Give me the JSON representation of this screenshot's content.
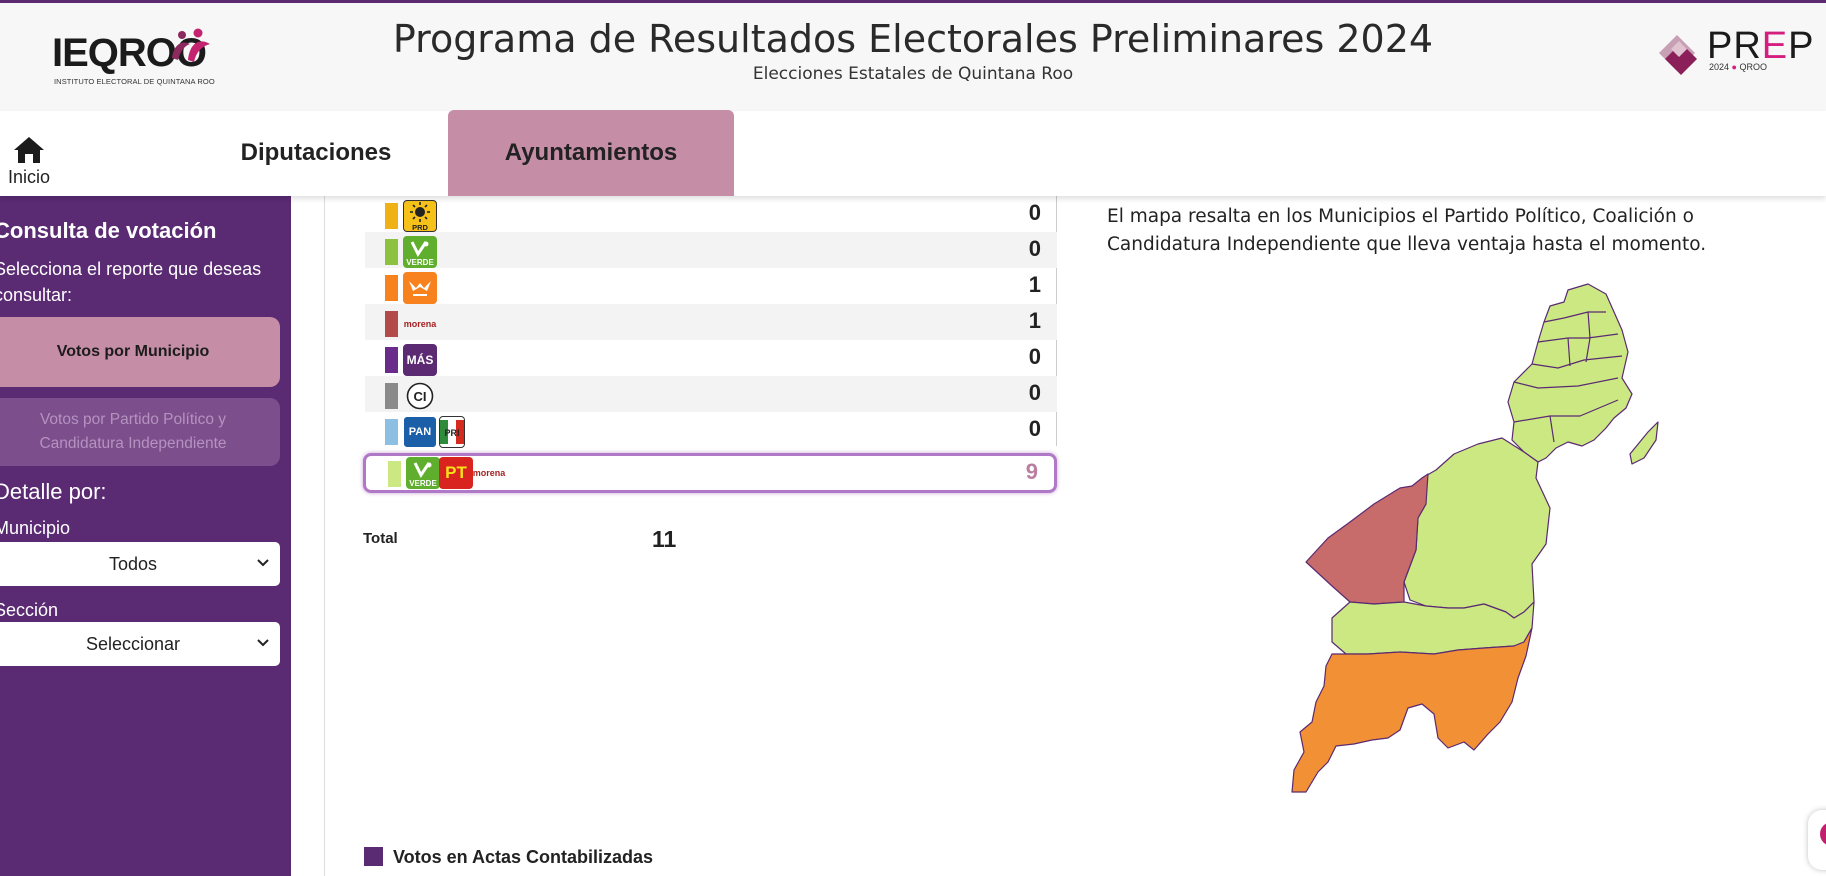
{
  "header": {
    "left_logo_text": "IEQROO",
    "left_logo_caption": "INSTITUTO ELECTORAL DE QUINTANA ROO",
    "title": "Programa de Resultados Electorales Preliminares 2024",
    "subtitle": "Elecciones Estatales de Quintana Roo",
    "right_logo_text": "PREP",
    "right_logo_year": "2024",
    "right_logo_state": "QROO"
  },
  "nav": {
    "home_label": "Inicio",
    "tabs": [
      {
        "label": "Diputaciones",
        "active": false
      },
      {
        "label": "Ayuntamientos",
        "active": true
      }
    ]
  },
  "sidebar": {
    "heading": "Consulta de votación",
    "prompt": "Selecciona el reporte que deseas consultar:",
    "buttons": [
      {
        "label": "Votos por Municipio",
        "active": true
      },
      {
        "label": "Votos por Partido Político y Candidatura Independiente",
        "active": false
      }
    ],
    "detail_heading": "Detalle por:",
    "filters": [
      {
        "label": "Municipio",
        "value": "Todos"
      },
      {
        "label": "Sección",
        "value": "Seleccionar"
      }
    ]
  },
  "results": {
    "rows": [
      {
        "party": "PRD",
        "color": "#f0b117",
        "value": "0"
      },
      {
        "party": "VERDE",
        "color": "#8cc23f",
        "value": "0"
      },
      {
        "party": "MOVIMIENTO CIUDADANO",
        "color": "#f7821e",
        "value": "1"
      },
      {
        "party": "morena",
        "color": "#b34b4b",
        "value": "1"
      },
      {
        "party": "MÁS",
        "color": "#6a2c8a",
        "value": "0"
      },
      {
        "party": "CI",
        "color": "#8a8a8a",
        "value": "0"
      },
      {
        "party": "PAN PRI PRD",
        "color": "#8dbfe2",
        "value": "0"
      }
    ],
    "winner": {
      "party": "VERDE PT morena",
      "color": "#cbe882",
      "value": "9"
    },
    "total_label": "Total",
    "total_value": "11"
  },
  "map": {
    "description": "El mapa resalta en los Municipios el Partido Político, Coalición o Candidatura Independiente que lleva ventaja hasta el momento.",
    "colors": {
      "coalition": "#cbe882",
      "morena": "#c86b6b",
      "mc": "#f29035",
      "border": "#5a2a72"
    }
  },
  "legend": {
    "label": "Votos en Actas Contabilizadas",
    "color": "#5a2a72"
  },
  "icons": [
    "home-icon",
    "chevron-down-icon",
    "prd-logo",
    "verde-logo",
    "mc-logo",
    "morena-logo",
    "mas-logo",
    "ci-logo",
    "pan-logo",
    "pri-logo",
    "pt-logo"
  ]
}
